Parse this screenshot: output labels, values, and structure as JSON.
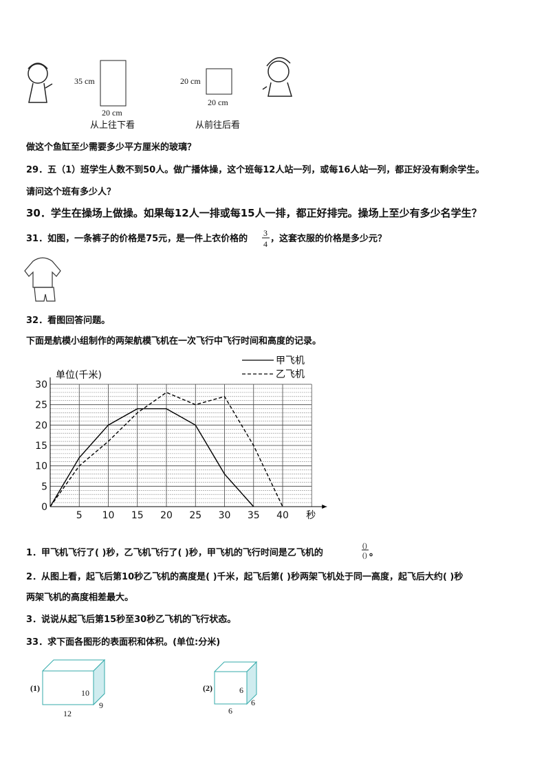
{
  "figures_top": {
    "left_height": "35 cm",
    "left_width": "20 cm",
    "left_caption": "从上往下看",
    "right_height": "20 cm",
    "right_width": "20 cm",
    "right_caption": "从前往后看"
  },
  "q28_tail": "做这个鱼缸至少需要多少平方厘米的玻璃？",
  "q29": {
    "line1": "29．五（1）班学生人数不到50人。做广播体操，这个班每12人站一列，或每16人站一列，都正好没有剩余学生。",
    "line2": "请问这个班有多少人？"
  },
  "q30": "30．学生在操场上做操。如果每12人一排或每15人一排，都正好排完。操场上至少有多少名学生？",
  "q31": {
    "before": "31．如图，一条裤子的价格是75元，是一件上衣价格的",
    "numerator": "3",
    "denominator": "4",
    "after": "，这套衣服的价格是多少元？"
  },
  "q32": {
    "title": "32．看图回答问题。",
    "intro": "下面是航模小组制作的两架航模飞机在一次飞行中飞行时间和高度的记录。",
    "chart": {
      "type": "line",
      "ylabel": "单位(千米)",
      "xlabel": "秒",
      "x": [
        0,
        5,
        10,
        15,
        20,
        25,
        30,
        35,
        40
      ],
      "series": [
        {
          "name": "甲飞机",
          "color": "#000000",
          "style": "solid",
          "values": [
            0,
            12,
            20,
            24,
            24,
            20,
            8,
            0,
            null
          ]
        },
        {
          "name": "乙飞机",
          "color": "#000000",
          "style": "dashed",
          "values": [
            0,
            10,
            16,
            23,
            28,
            25,
            27,
            15,
            0
          ]
        }
      ],
      "xlim": [
        0,
        45
      ],
      "ylim": [
        0,
        30
      ],
      "xticks": [
        5,
        10,
        15,
        20,
        25,
        30,
        35,
        40
      ],
      "yticks": [
        0,
        5,
        10,
        15,
        20,
        25,
        30
      ],
      "grid": true
    },
    "sub1": {
      "text": "1．甲飞机飞行了(    )秒，乙飞机飞行了(    )秒，甲飞机的飞行时间是乙飞机的",
      "numerator": "()",
      "denominator": "()",
      "end": "。"
    },
    "sub2": {
      "line1": "2．从图上看，起飞后第10秒乙飞机的高度是(    )千米，起飞后第(    )秒两架飞机处于同一高度，起飞后大约(    )秒",
      "line2": "两架飞机的高度相差最大。"
    },
    "sub3": "3．说说从起飞后第15秒至30秒乙飞机的飞行状态。"
  },
  "q33": {
    "title": "33．求下面各图形的表面积和体积。(单位:分米)",
    "fig1": {
      "label": "(1)",
      "height": "10",
      "depth": "9",
      "length": "12"
    },
    "fig2": {
      "label": "(2)",
      "height": "6",
      "depth": "6",
      "length": "6"
    }
  }
}
